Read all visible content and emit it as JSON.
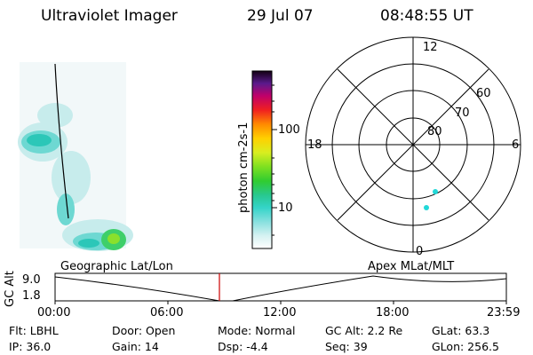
{
  "header": {
    "instrument": "Ultraviolet Imager",
    "date": "29 Jul 07",
    "time": "08:48:55 UT"
  },
  "colorbar": {
    "label": "photon cm-2s-1",
    "ticks": [
      "100",
      "10"
    ]
  },
  "polar": {
    "mlt_labels": {
      "top": "12",
      "left": "18",
      "right": "6",
      "bottom": "0"
    },
    "lat_labels": [
      "60",
      "70",
      "80"
    ]
  },
  "timeline": {
    "y_axis_label": "GC Alt",
    "y_max": "9.0",
    "y_min": "1.8",
    "left_title": "Geographic Lat/Lon",
    "right_title": "Apex MLat/MLT",
    "x_ticks": [
      "00:00",
      "06:00",
      "12:00",
      "18:00",
      "23:59"
    ]
  },
  "info": {
    "row1": {
      "flt": "Flt: LBHL",
      "door": "Door: Open",
      "mode": "Mode: Normal",
      "gcalt": "GC Alt: 2.2 Re",
      "glat": "GLat:  63.3"
    },
    "row2": {
      "ip": "IP: 36.0",
      "gain": "Gain: 14",
      "dsp": "Dsp:   -4.4",
      "seq": "Seq: 39",
      "glon": "GLon: 256.5"
    }
  }
}
